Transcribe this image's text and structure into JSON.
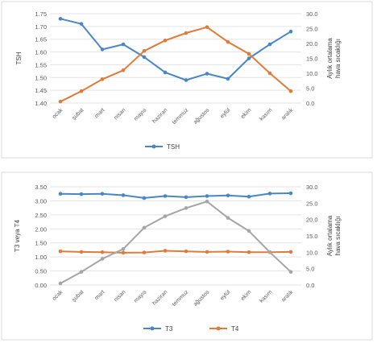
{
  "chart_data": [
    {
      "type": "line",
      "categories": [
        "ocak",
        "şubat",
        "mart",
        "nisan",
        "mayıs",
        "haziran",
        "temmuz",
        "ağustos",
        "eylül",
        "ekim",
        "kasım",
        "aralık"
      ],
      "ylabel": "TSH",
      "y2label_lines": [
        "Aylık ortalama",
        "hava sıcaklığı"
      ],
      "ylim": [
        1.4,
        1.75
      ],
      "y2lim": [
        0,
        30
      ],
      "yticks": [
        "1.40",
        "1.45",
        "1.50",
        "1.55",
        "1.60",
        "1.65",
        "1.70",
        "1.75"
      ],
      "y2ticks": [
        "0.0",
        "5.0",
        "10.0",
        "15.0",
        "20.0",
        "25.0",
        "30.0"
      ],
      "legend": [
        "TSH"
      ],
      "series": [
        {
          "name": "TSH",
          "axis": "left",
          "color": "#4a86c5",
          "values": [
            1.73,
            1.71,
            1.61,
            1.63,
            1.58,
            1.52,
            1.49,
            1.515,
            1.495,
            1.575,
            1.63,
            1.68
          ]
        },
        {
          "axis": "right",
          "color": "#e07b39",
          "values": [
            0.5,
            4.0,
            8.0,
            11.0,
            17.5,
            21.0,
            23.5,
            25.5,
            20.5,
            16.5,
            10.0,
            4.0
          ]
        }
      ]
    },
    {
      "type": "line",
      "categories": [
        "ocak",
        "şubat",
        "mart",
        "nisan",
        "mayıs",
        "haziran",
        "temmuz",
        "ağustos",
        "eylül",
        "ekim",
        "kasım",
        "aralık"
      ],
      "ylabel": "T3 veya T4",
      "y2label_lines": [
        "Aylık ortalama",
        "hava sıcaklığı"
      ],
      "ylim": [
        0,
        3.5
      ],
      "y2lim": [
        0,
        30
      ],
      "yticks": [
        "0.00",
        "0.50",
        "1.00",
        "1.50",
        "2.00",
        "2.50",
        "3.00",
        "3.50"
      ],
      "y2ticks": [
        "0.0",
        "5.0",
        "10.0",
        "15.0",
        "20.0",
        "25.0",
        "30.0"
      ],
      "legend": [
        "T3",
        "T4"
      ],
      "series": [
        {
          "name": "T3",
          "axis": "left",
          "color": "#4a86c5",
          "values": [
            3.25,
            3.24,
            3.25,
            3.2,
            3.1,
            3.17,
            3.13,
            3.17,
            3.19,
            3.15,
            3.26,
            3.27
          ]
        },
        {
          "name": "T4",
          "axis": "left",
          "color": "#e07b39",
          "values": [
            1.2,
            1.18,
            1.17,
            1.15,
            1.16,
            1.22,
            1.2,
            1.18,
            1.19,
            1.17,
            1.17,
            1.18
          ]
        },
        {
          "axis": "right",
          "color": "#a5a5a5",
          "values": [
            0.5,
            4.0,
            8.0,
            11.0,
            17.5,
            21.0,
            23.5,
            25.5,
            20.5,
            16.5,
            10.0,
            4.0
          ]
        }
      ]
    }
  ]
}
